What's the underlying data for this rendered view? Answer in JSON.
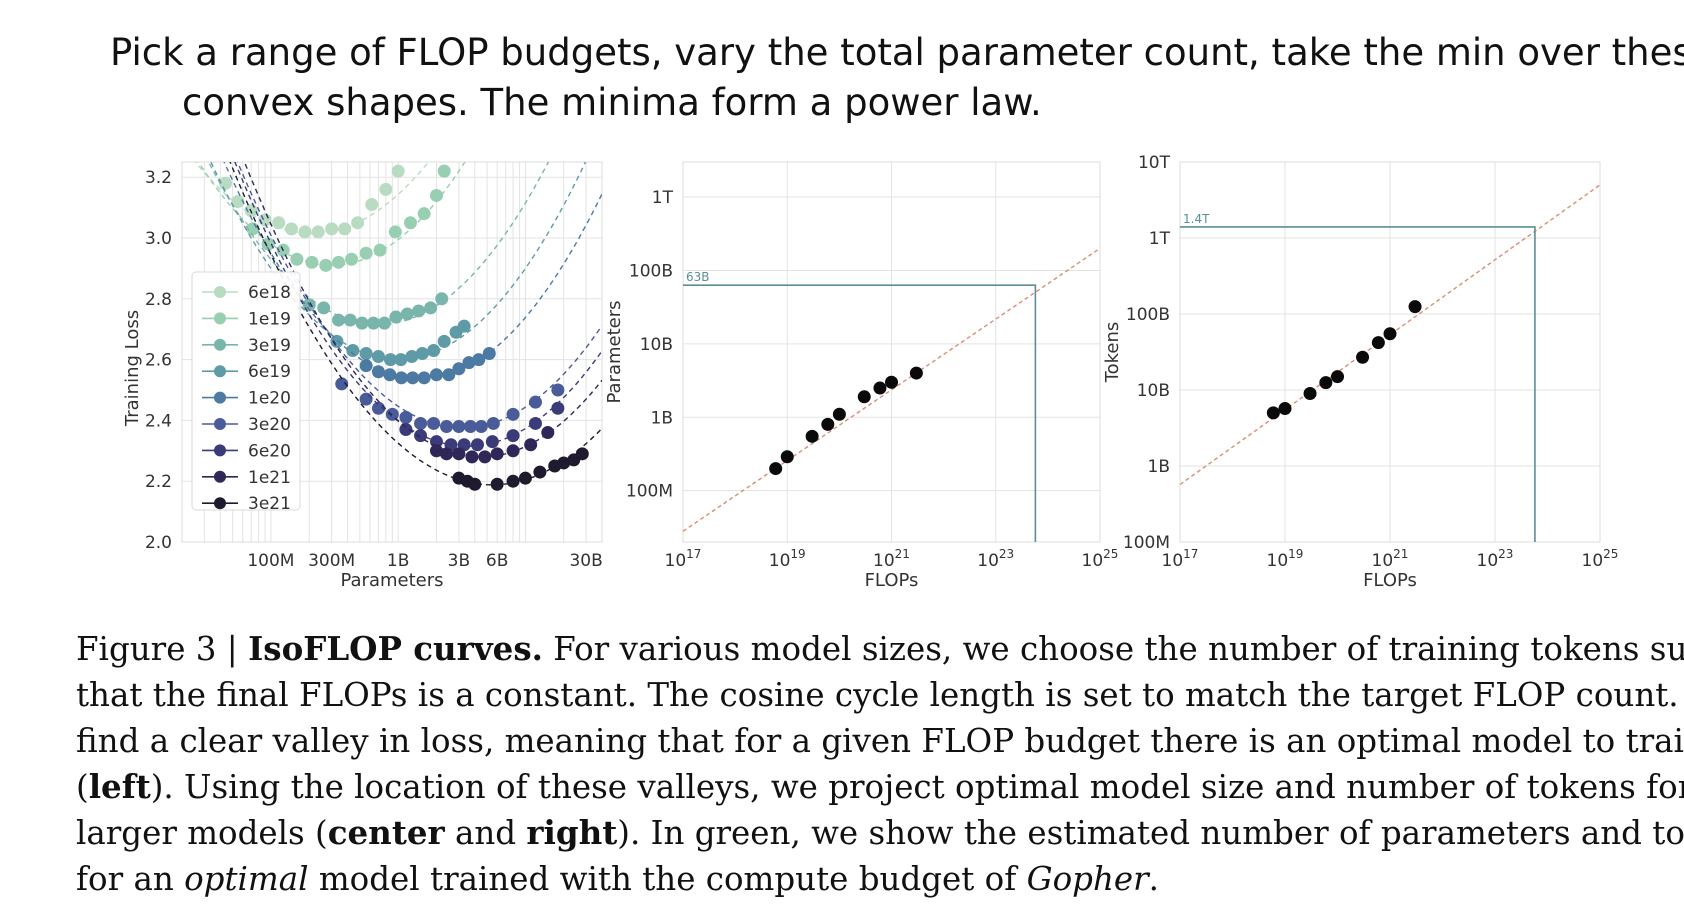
{
  "headline": {
    "line1": "Pick a range of FLOP budgets, vary the total parameter count, take the min over these",
    "line2": "convex shapes. The minima form a power law."
  },
  "caption": {
    "l1a": "Figure 3 | ",
    "l1b": "IsoFLOP curves.",
    "l1c": " For various model sizes, we choose the number of training tokens such",
    "l2": "that the final FLOPs is a constant. The cosine cycle length is set to match the target FLOP count. We",
    "l3": "find a clear valley in loss, meaning that for a given FLOP budget there is an optimal model to train",
    "l4a": "(",
    "l4b": "left",
    "l4c": "). Using the location of these valleys, we project optimal model size and number of tokens for",
    "l5a": "larger models (",
    "l5b": "center",
    "l5c": " and ",
    "l5d": "right",
    "l5e": "). In green, we show the estimated number of parameters and tokens",
    "l6a": "for an ",
    "l6b": "optimal",
    "l6c": " model trained with the compute budget of ",
    "l6d": "Gopher",
    "l6e": "."
  },
  "chart_data": [
    {
      "type": "scatter",
      "panel": "left",
      "xlabel": "Parameters",
      "ylabel": "Training Loss",
      "xscale": "log",
      "xlim": [
        20000000,
        40000000000
      ],
      "ylim": [
        2.0,
        3.25
      ],
      "xticks": [
        100000000,
        300000000,
        1000000000,
        3000000000,
        6000000000,
        30000000000
      ],
      "xtick_labels": [
        "100M",
        "300M",
        "1B",
        "3B",
        "6B",
        "30B"
      ],
      "yticks": [
        2.0,
        2.2,
        2.4,
        2.6,
        2.8,
        3.0,
        3.2
      ],
      "ytick_labels": [
        "2.0",
        "2.2",
        "2.4",
        "2.6",
        "2.8",
        "3.0",
        "3.2"
      ],
      "grid": true,
      "legend": "left",
      "series": [
        {
          "name": "6e18",
          "color": "#b8dbc2",
          "points": [
            [
              44000000,
              3.18
            ],
            [
              55000000,
              3.12
            ],
            [
              70000000,
              3.09
            ],
            [
              90000000,
              3.06
            ],
            [
              115000000,
              3.05
            ],
            [
              145000000,
              3.03
            ],
            [
              185000000,
              3.02
            ],
            [
              235000000,
              3.02
            ],
            [
              300000000,
              3.03
            ],
            [
              380000000,
              3.03
            ],
            [
              480000000,
              3.05
            ],
            [
              620000000,
              3.11
            ],
            [
              800000000,
              3.16
            ],
            [
              1000000000,
              3.22
            ]
          ],
          "fit": {
            "a": 3.015,
            "b": 0.28,
            "c": 210000000
          }
        },
        {
          "name": "1e19",
          "color": "#98ceb1",
          "points": [
            [
              72000000,
              3.03
            ],
            [
              95000000,
              2.98
            ],
            [
              125000000,
              2.96
            ],
            [
              160000000,
              2.93
            ],
            [
              210000000,
              2.92
            ],
            [
              270000000,
              2.91
            ],
            [
              340000000,
              2.92
            ],
            [
              430000000,
              2.93
            ],
            [
              560000000,
              2.95
            ],
            [
              720000000,
              2.96
            ],
            [
              950000000,
              3.02
            ],
            [
              1250000000,
              3.05
            ],
            [
              1600000000,
              3.08
            ],
            [
              2000000000,
              3.14
            ],
            [
              2300000000,
              3.22
            ]
          ],
          "fit": {
            "a": 2.91,
            "b": 0.31,
            "c": 300000000
          }
        },
        {
          "name": "3e19",
          "color": "#79b5aa",
          "points": [
            [
              200000000,
              2.78
            ],
            [
              260000000,
              2.77
            ],
            [
              340000000,
              2.73
            ],
            [
              420000000,
              2.73
            ],
            [
              520000000,
              2.72
            ],
            [
              640000000,
              2.72
            ],
            [
              780000000,
              2.72
            ],
            [
              960000000,
              2.74
            ],
            [
              1180000000,
              2.75
            ],
            [
              1450000000,
              2.76
            ],
            [
              1800000000,
              2.77
            ],
            [
              2200000000,
              2.8
            ]
          ],
          "fit": {
            "a": 2.715,
            "b": 0.3,
            "c": 700000000
          }
        },
        {
          "name": "6e19",
          "color": "#5f9ba6",
          "points": [
            [
              330000000,
              2.66
            ],
            [
              440000000,
              2.63
            ],
            [
              560000000,
              2.62
            ],
            [
              700000000,
              2.61
            ],
            [
              870000000,
              2.6
            ],
            [
              1050000000,
              2.6
            ],
            [
              1280000000,
              2.61
            ],
            [
              1550000000,
              2.62
            ],
            [
              1900000000,
              2.63
            ],
            [
              2300000000,
              2.66
            ],
            [
              2850000000,
              2.69
            ],
            [
              3300000000,
              2.71
            ]
          ],
          "fit": {
            "a": 2.6,
            "b": 0.3,
            "c": 1000000000
          }
        },
        {
          "name": "1e20",
          "color": "#4d7aa2",
          "points": [
            [
              560000000,
              2.58
            ],
            [
              700000000,
              2.56
            ],
            [
              860000000,
              2.55
            ],
            [
              1060000000,
              2.54
            ],
            [
              1300000000,
              2.54
            ],
            [
              1600000000,
              2.54
            ],
            [
              2000000000,
              2.55
            ],
            [
              2500000000,
              2.55
            ],
            [
              3000000000,
              2.57
            ],
            [
              3600000000,
              2.59
            ],
            [
              4300000000,
              2.6
            ],
            [
              5200000000,
              2.62
            ]
          ],
          "fit": {
            "a": 2.535,
            "b": 0.3,
            "c": 1500000000
          }
        },
        {
          "name": "3e20",
          "color": "#4a5b9a",
          "points": [
            [
              360000000,
              2.52
            ],
            [
              560000000,
              2.47
            ],
            [
              700000000,
              2.44
            ],
            [
              900000000,
              2.42
            ],
            [
              1150000000,
              2.41
            ],
            [
              1500000000,
              2.39
            ],
            [
              1900000000,
              2.39
            ],
            [
              2400000000,
              2.38
            ],
            [
              3000000000,
              2.38
            ],
            [
              3700000000,
              2.38
            ],
            [
              4500000000,
              2.38
            ],
            [
              5600000000,
              2.39
            ],
            [
              8000000000,
              2.42
            ],
            [
              12000000000,
              2.46
            ],
            [
              18000000000,
              2.5
            ]
          ],
          "fit": {
            "a": 2.375,
            "b": 0.28,
            "c": 3200000000
          }
        },
        {
          "name": "6e20",
          "color": "#3c3b7a",
          "points": [
            [
              1150000000,
              2.37
            ],
            [
              1500000000,
              2.35
            ],
            [
              2000000000,
              2.33
            ],
            [
              2600000000,
              2.32
            ],
            [
              3300000000,
              2.32
            ],
            [
              4200000000,
              2.32
            ],
            [
              5500000000,
              2.33
            ],
            [
              8000000000,
              2.35
            ],
            [
              12000000000,
              2.39
            ],
            [
              18000000000,
              2.44
            ]
          ],
          "fit": {
            "a": 2.315,
            "b": 0.28,
            "c": 3500000000
          }
        },
        {
          "name": "1e21",
          "color": "#2f2757",
          "points": [
            [
              2000000000,
              2.3
            ],
            [
              2400000000,
              2.29
            ],
            [
              3000000000,
              2.29
            ],
            [
              3800000000,
              2.28
            ],
            [
              4800000000,
              2.28
            ],
            [
              6000000000,
              2.29
            ],
            [
              8000000000,
              2.3
            ],
            [
              11000000000,
              2.32
            ],
            [
              15000000000,
              2.36
            ]
          ],
          "fit": {
            "a": 2.28,
            "b": 0.28,
            "c": 4500000000
          }
        },
        {
          "name": "3e21",
          "color": "#1f1a2e",
          "points": [
            [
              3000000000,
              2.21
            ],
            [
              3500000000,
              2.2
            ],
            [
              4000000000,
              2.19
            ],
            [
              6000000000,
              2.19
            ],
            [
              8000000000,
              2.2
            ],
            [
              10000000000,
              2.21
            ],
            [
              13000000000,
              2.23
            ],
            [
              17000000000,
              2.25
            ],
            [
              20000000000,
              2.26
            ],
            [
              24000000000,
              2.27
            ],
            [
              28000000000,
              2.29
            ]
          ],
          "fit": {
            "a": 2.188,
            "b": 0.25,
            "c": 5500000000
          }
        }
      ]
    },
    {
      "type": "scatter",
      "panel": "center",
      "xlabel": "FLOPs",
      "ylabel": "Parameters",
      "xscale": "log",
      "yscale": "log",
      "xlim": [
        1e+17,
        1e+25
      ],
      "ylim": [
        20000000,
        3000000000000
      ],
      "xticks": [
        1e+17,
        1e+19,
        1e+21,
        1e+23,
        1e+25
      ],
      "xtick_labels": [
        "17",
        "19",
        "21",
        "23",
        "25"
      ],
      "xtick_base": "10",
      "yticks": [
        100000000,
        1000000000,
        10000000000,
        100000000000,
        1000000000000
      ],
      "ytick_labels": [
        "100M",
        "1B",
        "10B",
        "100B",
        "1T"
      ],
      "grid": true,
      "points": [
        [
          6e+18,
          200000000
        ],
        [
          1e+19,
          290000000
        ],
        [
          3e+19,
          550000000
        ],
        [
          6e+19,
          800000000
        ],
        [
          1e+20,
          1100000000
        ],
        [
          3e+20,
          1900000000
        ],
        [
          6e+20,
          2500000000
        ],
        [
          1e+21,
          3000000000
        ],
        [
          3e+21,
          4000000000
        ]
      ],
      "fit_line": {
        "x": [
          1e+17,
          1e+25
        ],
        "y": [
          28000000,
          200000000000
        ],
        "color": "#d98e73"
      },
      "annotation": {
        "label": "63B",
        "x": 5.76e+23,
        "y": 63000000000,
        "color": "#5a8f98"
      }
    },
    {
      "type": "scatter",
      "panel": "right",
      "xlabel": "FLOPs",
      "ylabel": "Tokens",
      "xscale": "log",
      "yscale": "log",
      "xlim": [
        1e+17,
        1e+25
      ],
      "ylim": [
        100000000,
        10000000000000
      ],
      "xticks": [
        1e+17,
        1e+19,
        1e+21,
        1e+23,
        1e+25
      ],
      "xtick_labels": [
        "17",
        "19",
        "21",
        "23",
        "25"
      ],
      "xtick_base": "10",
      "yticks": [
        100000000,
        1000000000,
        10000000000,
        100000000000,
        1000000000000,
        10000000000000
      ],
      "ytick_labels": [
        "100M",
        "1B",
        "10B",
        "100B",
        "1T",
        "10T"
      ],
      "grid": true,
      "points": [
        [
          6e+18,
          5000000000
        ],
        [
          1e+19,
          5700000000
        ],
        [
          3e+19,
          9000000000
        ],
        [
          6e+19,
          12500000000
        ],
        [
          1e+20,
          15000000000
        ],
        [
          3e+20,
          27000000000
        ],
        [
          6e+20,
          42000000000
        ],
        [
          1e+21,
          55000000000
        ],
        [
          3e+21,
          125000000000
        ]
      ],
      "fit_line": {
        "x": [
          1e+17,
          1e+25
        ],
        "y": [
          570000000,
          5000000000000
        ],
        "color": "#d98e73"
      },
      "annotation": {
        "label": "1.4T",
        "x": 5.76e+23,
        "y": 1400000000000,
        "color": "#5a8f98"
      }
    }
  ]
}
